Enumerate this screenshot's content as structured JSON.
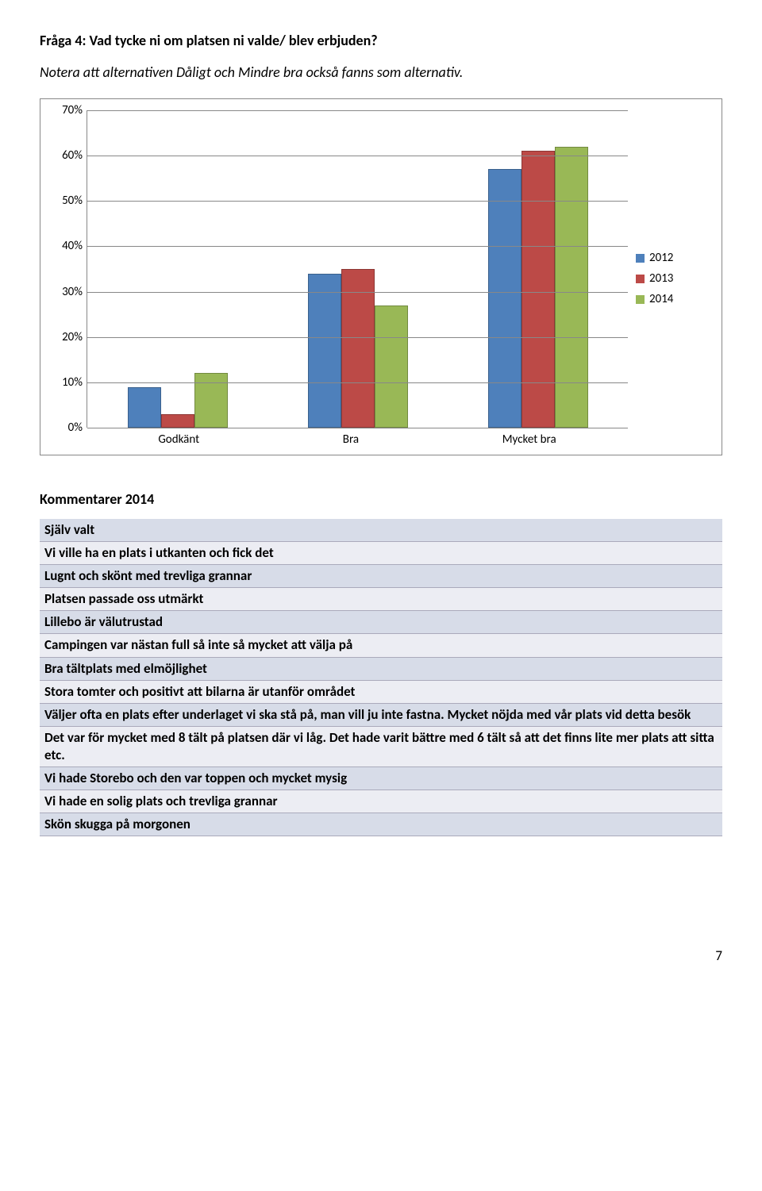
{
  "question": {
    "title": "Fråga 4: Vad tycke ni om platsen ni valde/ blev erbjuden?",
    "note": "Notera att alternativen Dåligt och Mindre bra också fanns som alternativ."
  },
  "chart": {
    "type": "bar",
    "ylim": [
      0,
      70
    ],
    "ytick_step": 10,
    "yticks": [
      "0%",
      "10%",
      "20%",
      "30%",
      "40%",
      "50%",
      "60%",
      "70%"
    ],
    "categories": [
      "Godkänt",
      "Bra",
      "Mycket bra"
    ],
    "series": [
      {
        "label": "2012",
        "color": "#4e80bb",
        "values": [
          9,
          34,
          57
        ]
      },
      {
        "label": "2013",
        "color": "#bc4a47",
        "values": [
          3,
          35,
          61
        ]
      },
      {
        "label": "2014",
        "color": "#99b856",
        "values": [
          12,
          27,
          62
        ]
      }
    ],
    "border_color": "#888888",
    "grid_color": "#888888",
    "background_color": "#ffffff",
    "bar_border": "rgba(0,0,0,0.25)",
    "label_fontsize": 15
  },
  "comments": {
    "title": "Kommentarer 2014",
    "rows": [
      "Själv valt",
      "Vi ville ha en plats i utkanten och fick det",
      "Lugnt och skönt med trevliga grannar",
      "Platsen passade oss utmärkt",
      "Lillebo är välutrustad",
      "Campingen var nästan full så inte så mycket att välja på",
      "Bra tältplats med elmöjlighet",
      "Stora tomter och positivt att bilarna är utanför området",
      "Väljer ofta en plats efter underlaget vi ska stå på, man vill ju inte fastna. Mycket nöjda med vår plats vid detta besök",
      "Det var för mycket med 8 tält på platsen där vi låg. Det hade varit bättre med 6 tält så att det finns lite mer plats att sitta etc.",
      "Vi hade Storebo och den var toppen och mycket mysig",
      "Vi hade en solig plats och trevliga grannar",
      "Skön skugga på morgonen"
    ],
    "row_color_a": "#d7dce8",
    "row_color_b": "#ecedf3"
  },
  "page_number": "7"
}
